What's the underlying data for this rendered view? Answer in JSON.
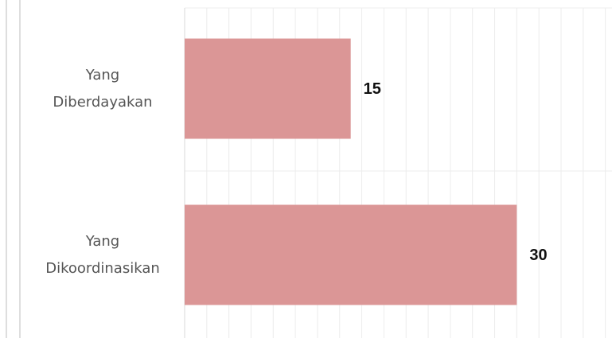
{
  "chart_data": {
    "type": "barh",
    "categories": [
      "Yang Diberdayakan",
      "Yang Dikoordinasikan"
    ],
    "values": [
      15,
      30
    ],
    "color": "#db9696",
    "xlim": [
      0,
      38.6
    ],
    "xticks": [
      0,
      2,
      4,
      6,
      8,
      10,
      12,
      14,
      16,
      18,
      20,
      22,
      24,
      26,
      28,
      30,
      32,
      34,
      36,
      38
    ],
    "grid": true
  }
}
